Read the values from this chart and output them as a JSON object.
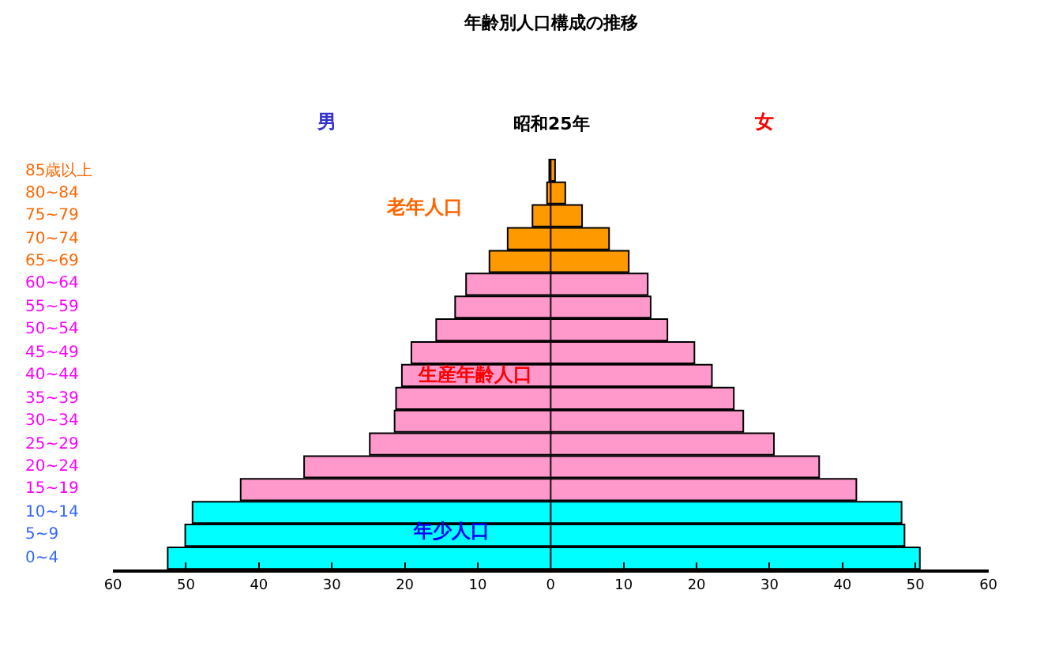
{
  "chart_data": [
    {
      "type": "bar",
      "orientation": "horizontal",
      "title": "年齢別人口構成の推移",
      "subtitle": "昭和25年",
      "categories": [
        "85歳以上",
        "80~84",
        "75~79",
        "70~74",
        "65~69",
        "60~64",
        "55~59",
        "50~54",
        "45~49",
        "40~44",
        "35~39",
        "30~34",
        "25~29",
        "20~24",
        "15~19",
        "10~14",
        "5~9",
        "0~4"
      ],
      "values": [
        0.2,
        0.5,
        2.5,
        5.9,
        8.4,
        11.6,
        13.1,
        15.7,
        19.1,
        20.4,
        21.2,
        21.4,
        24.8,
        33.8,
        42.5,
        49.1,
        50.1,
        52.5
      ],
      "colors": [
        "#ff9900",
        "#ff9900",
        "#ff9900",
        "#ff9900",
        "#ff9900",
        "#ff99cc",
        "#ff99cc",
        "#ff99cc",
        "#ff99cc",
        "#ff99cc",
        "#ff99cc",
        "#ff99cc",
        "#ff99cc",
        "#ff99cc",
        "#ff99cc",
        "#00ffff",
        "#00ffff",
        "#00ffff"
      ],
      "xlim": [
        60,
        0
      ],
      "xticks": [
        60,
        50,
        40,
        30,
        20,
        10,
        0
      ],
      "annotations": [
        "男",
        "老年人口",
        "生産年齢人口",
        "年少人口"
      ]
    },
    {
      "type": "bar",
      "orientation": "horizontal",
      "tick_labels": "x",
      "categories": [
        null,
        null,
        null,
        null,
        null,
        null,
        null,
        null,
        null,
        null,
        null,
        null,
        null,
        null,
        null,
        null,
        null,
        null
      ],
      "values": [
        0.6,
        2.0,
        4.3,
        8.0,
        10.7,
        13.3,
        13.7,
        16.0,
        19.7,
        22.1,
        25.1,
        26.4,
        30.6,
        36.8,
        41.9,
        48.1,
        48.5,
        50.6
      ],
      "colors": [
        "#ff9900",
        "#ff9900",
        "#ff9900",
        "#ff9900",
        "#ff9900",
        "#ff99cc",
        "#ff99cc",
        "#ff99cc",
        "#ff99cc",
        "#ff99cc",
        "#ff99cc",
        "#ff99cc",
        "#ff99cc",
        "#ff99cc",
        "#ff99cc",
        "#00ffff",
        "#00ffff",
        "#00ffff"
      ],
      "xlim": [
        0,
        60
      ],
      "xticks": [
        {
          "value": 0,
          "label": null
        },
        10,
        20,
        30,
        40,
        50,
        60
      ],
      "annotations": [
        "女"
      ]
    }
  ]
}
